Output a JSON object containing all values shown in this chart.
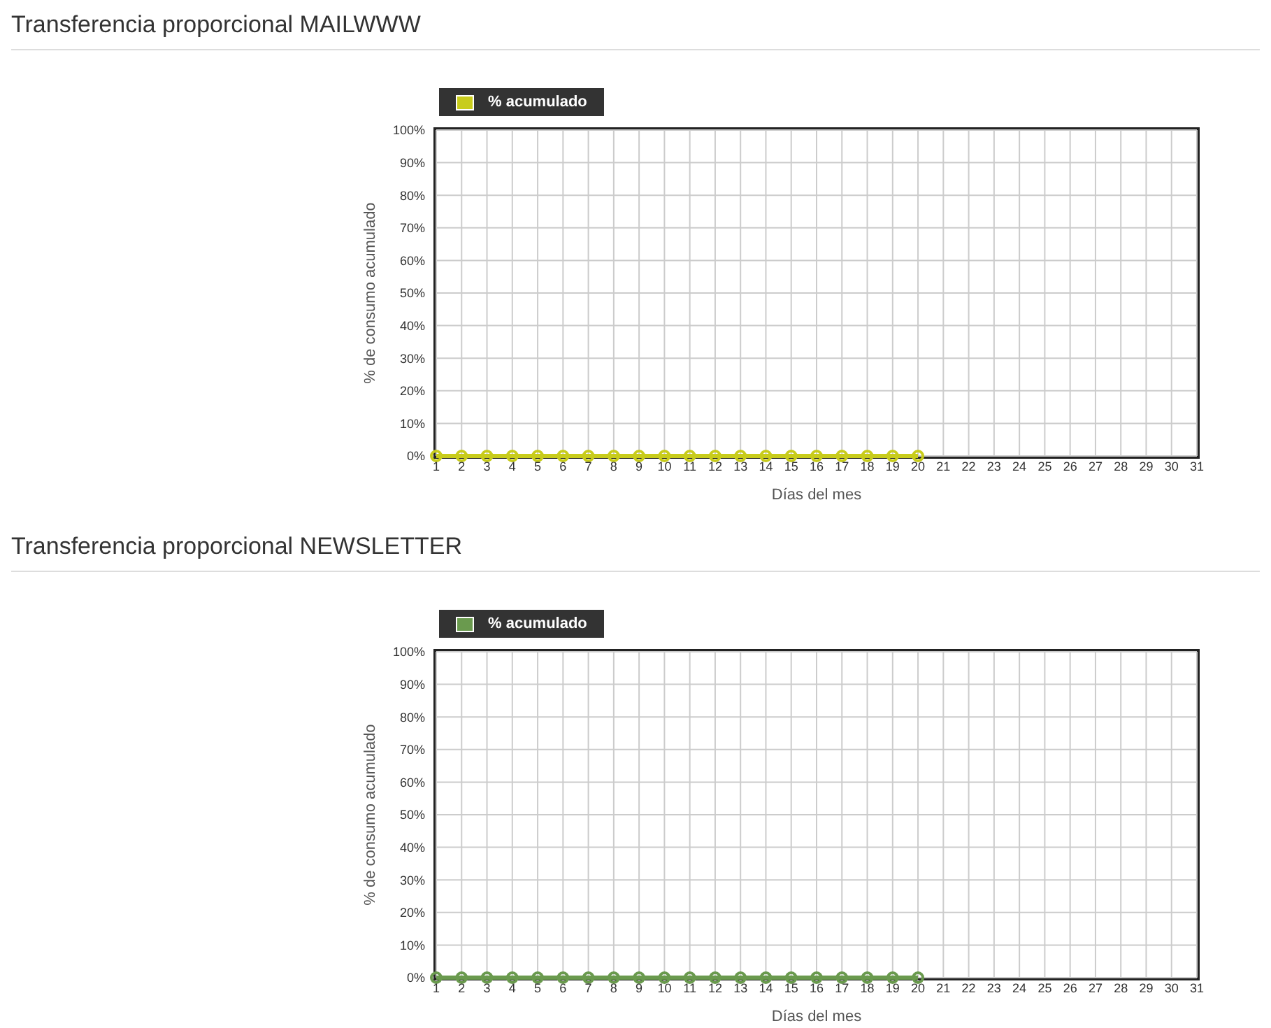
{
  "chart_data": [
    {
      "type": "line",
      "title": "Transferencia proporcional MAILWWW",
      "xlabel": "Días del mes",
      "ylabel": "% de consumo acumulado",
      "x": [
        1,
        2,
        3,
        4,
        5,
        6,
        7,
        8,
        9,
        10,
        11,
        12,
        13,
        14,
        15,
        16,
        17,
        18,
        19,
        20
      ],
      "series": [
        {
          "name": "% acumulado",
          "color": "#c8cc1c",
          "values": [
            0,
            0,
            0,
            0,
            0,
            0,
            0,
            0,
            0,
            0,
            0,
            0,
            0,
            0,
            0,
            0,
            0,
            0,
            0,
            0
          ]
        }
      ],
      "xlim": [
        1,
        31
      ],
      "xticks": [
        1,
        2,
        3,
        4,
        5,
        6,
        7,
        8,
        9,
        10,
        11,
        12,
        13,
        14,
        15,
        16,
        17,
        18,
        19,
        20,
        21,
        22,
        23,
        24,
        25,
        26,
        27,
        28,
        29,
        30,
        31
      ],
      "ylim": [
        0,
        100
      ],
      "yticks": [
        {
          "value": 0,
          "label": "0%"
        },
        {
          "value": 10,
          "label": "10%"
        },
        {
          "value": 20,
          "label": "20%"
        },
        {
          "value": 30,
          "label": "30%"
        },
        {
          "value": 40,
          "label": "40%"
        },
        {
          "value": 50,
          "label": "50%"
        },
        {
          "value": 60,
          "label": "60%"
        },
        {
          "value": 70,
          "label": "70%"
        },
        {
          "value": 80,
          "label": "80%"
        },
        {
          "value": 90,
          "label": "90%"
        },
        {
          "value": 100,
          "label": "100%"
        }
      ],
      "grid": true,
      "legend": "top left",
      "marker": "circle",
      "line_style": "solid"
    },
    {
      "type": "line",
      "title": "Transferencia proporcional NEWSLETTER",
      "xlabel": "Días del mes",
      "ylabel": "% de consumo acumulado",
      "x": [
        1,
        2,
        3,
        4,
        5,
        6,
        7,
        8,
        9,
        10,
        11,
        12,
        13,
        14,
        15,
        16,
        17,
        18,
        19,
        20
      ],
      "series": [
        {
          "name": "% acumulado",
          "color": "#6a9a4e",
          "values": [
            0,
            0,
            0,
            0,
            0,
            0,
            0,
            0,
            0,
            0,
            0,
            0,
            0,
            0,
            0,
            0,
            0,
            0,
            0,
            0
          ]
        }
      ],
      "xlim": [
        1,
        31
      ],
      "xticks": [
        1,
        2,
        3,
        4,
        5,
        6,
        7,
        8,
        9,
        10,
        11,
        12,
        13,
        14,
        15,
        16,
        17,
        18,
        19,
        20,
        21,
        22,
        23,
        24,
        25,
        26,
        27,
        28,
        29,
        30,
        31
      ],
      "ylim": [
        0,
        100
      ],
      "yticks": [
        {
          "value": 0,
          "label": "0%"
        },
        {
          "value": 10,
          "label": "10%"
        },
        {
          "value": 20,
          "label": "20%"
        },
        {
          "value": 30,
          "label": "30%"
        },
        {
          "value": 40,
          "label": "40%"
        },
        {
          "value": 50,
          "label": "50%"
        },
        {
          "value": 60,
          "label": "60%"
        },
        {
          "value": 70,
          "label": "70%"
        },
        {
          "value": 80,
          "label": "80%"
        },
        {
          "value": 90,
          "label": "90%"
        },
        {
          "value": 100,
          "label": "100%"
        }
      ],
      "grid": true,
      "legend": "top left",
      "marker": "circle",
      "line_style": "solid"
    }
  ]
}
